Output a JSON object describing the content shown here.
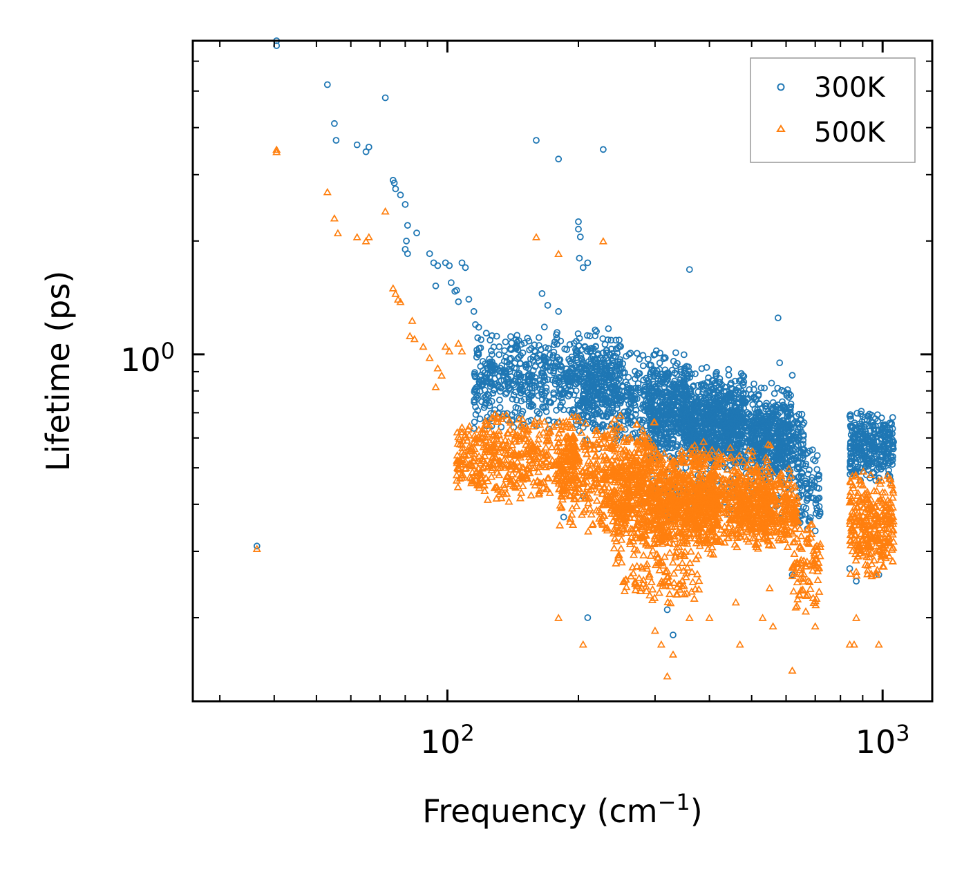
{
  "chart_data": {
    "type": "scatter",
    "xscale": "log",
    "yscale": "log",
    "xlabel": "Frequency (cm",
    "xlabel_sup": "−1",
    "xlabel_end": ")",
    "ylabel": "Lifetime (ps)",
    "xlim": [
      26,
      1300
    ],
    "ylim": [
      0.12,
      6.8
    ],
    "x_major_ticks": [
      {
        "value": 100,
        "base": "10",
        "exp": "2"
      },
      {
        "value": 1000,
        "base": "10",
        "exp": "3"
      }
    ],
    "y_major_ticks": [
      {
        "value": 1,
        "base": "10",
        "exp": "0"
      }
    ],
    "legend_position": "top-right",
    "series": [
      {
        "name": "300K",
        "marker": "circle",
        "color": "#1f77b4",
        "points": [
          [
            40.5,
            6.8
          ],
          [
            40.5,
            6.6
          ],
          [
            53,
            5.2
          ],
          [
            55,
            4.1
          ],
          [
            55.5,
            3.7
          ],
          [
            62,
            3.6
          ],
          [
            65,
            3.45
          ],
          [
            66,
            3.55
          ],
          [
            72,
            4.8
          ],
          [
            75,
            2.9
          ],
          [
            75.5,
            2.85
          ],
          [
            76,
            2.75
          ],
          [
            78,
            2.65
          ],
          [
            80,
            2.5
          ],
          [
            81,
            2.2
          ],
          [
            80.5,
            2.0
          ],
          [
            80,
            1.9
          ],
          [
            85,
            2.1
          ],
          [
            81,
            1.85
          ],
          [
            91,
            1.85
          ],
          [
            93,
            1.75
          ],
          [
            95,
            1.72
          ],
          [
            94,
            1.52
          ],
          [
            99,
            1.75
          ],
          [
            101,
            1.72
          ],
          [
            102,
            1.55
          ],
          [
            104,
            1.47
          ],
          [
            105,
            1.48
          ],
          [
            106,
            1.38
          ],
          [
            108,
            1.75
          ],
          [
            110,
            1.7
          ],
          [
            112,
            1.4
          ],
          [
            115,
            1.3
          ],
          [
            116,
            1.2
          ],
          [
            118,
            1.18
          ],
          [
            36.5,
            0.31
          ],
          [
            160,
            3.7
          ],
          [
            180,
            3.3
          ],
          [
            228,
            3.5
          ],
          [
            200,
            2.25
          ],
          [
            200,
            2.15
          ],
          [
            202,
            2.05
          ],
          [
            201,
            1.8
          ],
          [
            205,
            1.7
          ],
          [
            210,
            1.75
          ],
          [
            180,
            1.3
          ],
          [
            165,
            1.45
          ],
          [
            170,
            1.35
          ],
          [
            220,
            1.15
          ],
          [
            250,
            1.05
          ],
          [
            300,
            1.0
          ],
          [
            360,
            1.68
          ],
          [
            575,
            1.25
          ],
          [
            580,
            0.95
          ],
          [
            620,
            0.88
          ],
          [
            185,
            0.37
          ],
          [
            205,
            0.42
          ],
          [
            210,
            0.2
          ],
          [
            320,
            0.21
          ],
          [
            330,
            0.18
          ],
          [
            700,
            0.34
          ],
          [
            840,
            0.27
          ],
          [
            870,
            0.25
          ],
          [
            980,
            0.26
          ],
          [
            620,
            0.26
          ]
        ],
        "clusters": [
          {
            "x": [
              115,
              250
            ],
            "y": [
              0.62,
              1.2
            ],
            "n": 700
          },
          {
            "x": [
              200,
              360
            ],
            "y": [
              0.55,
              1.05
            ],
            "n": 500
          },
          {
            "x": [
              290,
              480
            ],
            "y": [
              0.5,
              0.95
            ],
            "n": 600
          },
          {
            "x": [
              350,
              620
            ],
            "y": [
              0.48,
              0.85
            ],
            "n": 700
          },
          {
            "x": [
              500,
              660
            ],
            "y": [
              0.45,
              0.72
            ],
            "n": 260
          },
          {
            "x": [
              640,
              720
            ],
            "y": [
              0.33,
              0.6
            ],
            "n": 80
          },
          {
            "x": [
              840,
              1060
            ],
            "y": [
              0.45,
              0.72
            ],
            "n": 320
          },
          {
            "x": [
              280,
              620
            ],
            "y": [
              0.35,
              0.55
            ],
            "n": 120
          }
        ]
      },
      {
        "name": "500K",
        "marker": "triangle",
        "color": "#ff7f0e",
        "points": [
          [
            40.5,
            3.5
          ],
          [
            40.5,
            3.45
          ],
          [
            53,
            2.7
          ],
          [
            55,
            2.3
          ],
          [
            56,
            2.1
          ],
          [
            62,
            2.05
          ],
          [
            65,
            2.0
          ],
          [
            66,
            2.05
          ],
          [
            72,
            2.4
          ],
          [
            75,
            1.5
          ],
          [
            76,
            1.45
          ],
          [
            77,
            1.4
          ],
          [
            78,
            1.38
          ],
          [
            83,
            1.23
          ],
          [
            82,
            1.12
          ],
          [
            84,
            1.1
          ],
          [
            88,
            1.05
          ],
          [
            91,
            0.98
          ],
          [
            95,
            0.92
          ],
          [
            99,
            1.05
          ],
          [
            101,
            1.02
          ],
          [
            106,
            1.07
          ],
          [
            108,
            1.02
          ],
          [
            94,
            0.82
          ],
          [
            97,
            0.88
          ],
          [
            36.5,
            0.305
          ],
          [
            160,
            2.05
          ],
          [
            180,
            1.85
          ],
          [
            228,
            2.0
          ],
          [
            180,
            0.2
          ],
          [
            205,
            0.17
          ],
          [
            300,
            0.185
          ],
          [
            330,
            0.16
          ],
          [
            320,
            0.14
          ],
          [
            310,
            0.17
          ],
          [
            470,
            0.17
          ],
          [
            530,
            0.2
          ],
          [
            560,
            0.19
          ],
          [
            620,
            0.145
          ],
          [
            700,
            0.19
          ],
          [
            840,
            0.17
          ],
          [
            860,
            0.17
          ],
          [
            870,
            0.2
          ],
          [
            980,
            0.17
          ],
          [
            360,
            0.2
          ],
          [
            400,
            0.2
          ],
          [
            550,
            0.24
          ],
          [
            460,
            0.22
          ]
        ],
        "clusters": [
          {
            "x": [
              105,
              200
            ],
            "y": [
              0.4,
              0.72
            ],
            "n": 500
          },
          {
            "x": [
              180,
              300
            ],
            "y": [
              0.33,
              0.7
            ],
            "n": 500
          },
          {
            "x": [
              240,
              420
            ],
            "y": [
              0.27,
              0.6
            ],
            "n": 700
          },
          {
            "x": [
              300,
              560
            ],
            "y": [
              0.3,
              0.58
            ],
            "n": 700
          },
          {
            "x": [
              460,
              640
            ],
            "y": [
              0.3,
              0.5
            ],
            "n": 350
          },
          {
            "x": [
              620,
              720
            ],
            "y": [
              0.2,
              0.38
            ],
            "n": 90
          },
          {
            "x": [
              840,
              1060
            ],
            "y": [
              0.25,
              0.5
            ],
            "n": 300
          },
          {
            "x": [
              250,
              380
            ],
            "y": [
              0.21,
              0.3
            ],
            "n": 90
          }
        ]
      }
    ]
  }
}
